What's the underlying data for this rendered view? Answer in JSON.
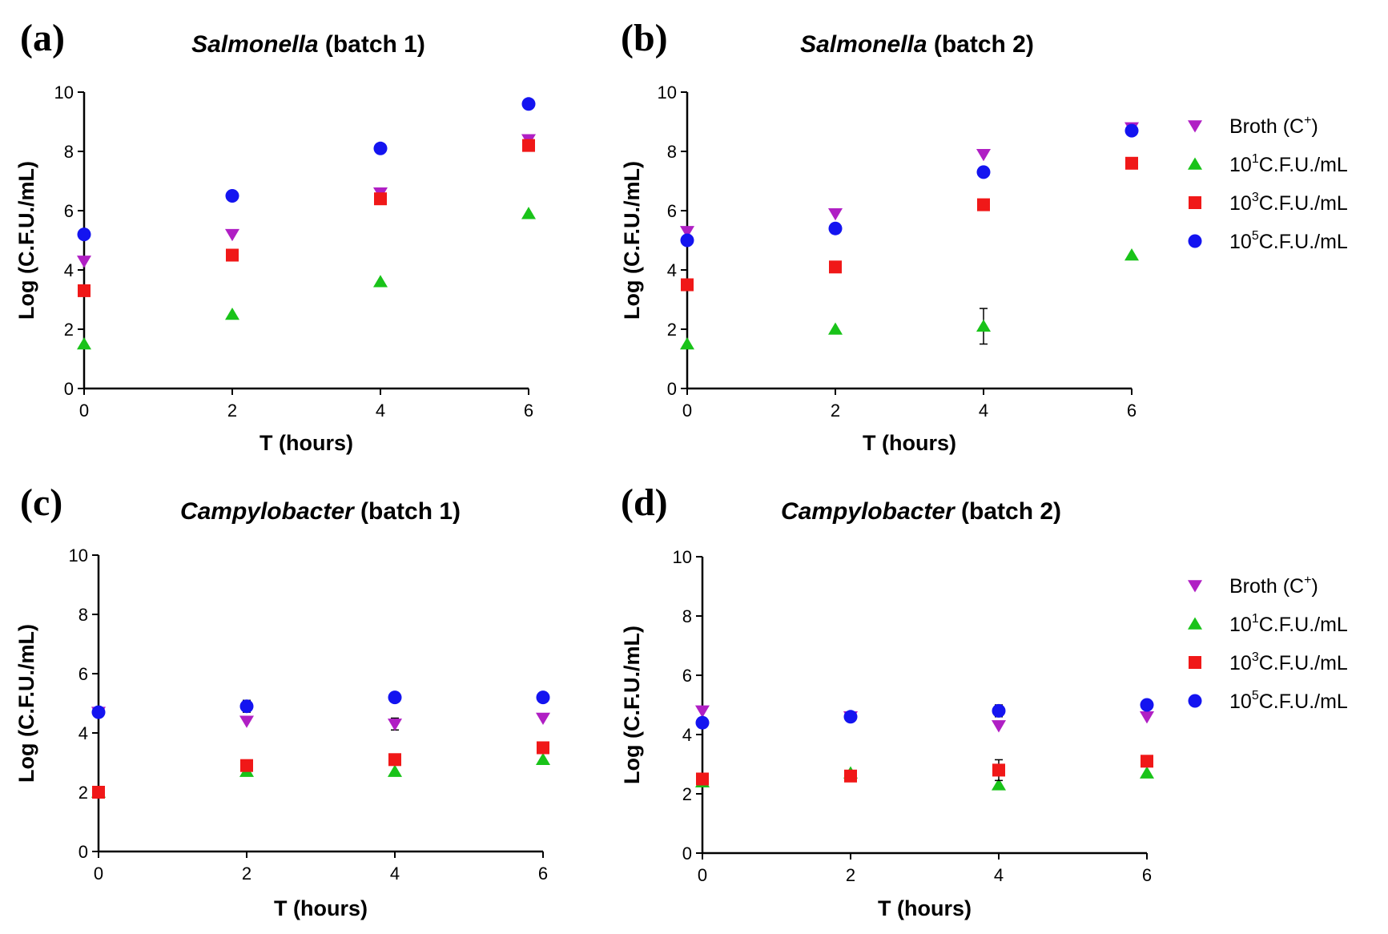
{
  "colors": {
    "broth": "#b01fc4",
    "c101": "#19c319",
    "c103": "#f01818",
    "c105": "#1414f0",
    "axis": "#000000"
  },
  "series_meta": [
    {
      "key": "broth",
      "icon": "triangle-down-icon",
      "label_prefix": "Broth (C",
      "label_sup": "+",
      "label_suffix": ")"
    },
    {
      "key": "c101",
      "icon": "triangle-up-icon",
      "label_prefix": "10",
      "label_sup": "1",
      "label_suffix": "C.F.U./mL"
    },
    {
      "key": "c103",
      "icon": "square-icon",
      "label_prefix": "10",
      "label_sup": "3",
      "label_suffix": "C.F.U./mL"
    },
    {
      "key": "c105",
      "icon": "circle-icon",
      "label_prefix": "10",
      "label_sup": "5",
      "label_suffix": "C.F.U./mL"
    }
  ],
  "chart_data": [
    {
      "type": "scatter",
      "panel_label": "(a)",
      "title_italic": "Salmonella",
      "title_rest": " (batch 1)",
      "xlabel": "T (hours)",
      "ylabel": "Log (C.F.U./mL)",
      "xlim": [
        0,
        6
      ],
      "ylim": [
        0,
        10
      ],
      "xticks": [
        0,
        2,
        4,
        6
      ],
      "yticks": [
        0,
        2,
        4,
        6,
        8,
        10
      ],
      "legend": false,
      "x": [
        0,
        2,
        4,
        6
      ],
      "series": [
        {
          "name": "Broth (C+)",
          "key": "broth",
          "values": [
            4.3,
            5.2,
            6.6,
            8.4
          ],
          "errors": [
            0,
            0,
            0,
            0
          ]
        },
        {
          "name": "10^1 C.F.U./mL",
          "key": "c101",
          "values": [
            1.5,
            2.5,
            3.6,
            5.9
          ],
          "errors": [
            0,
            0,
            0,
            0
          ]
        },
        {
          "name": "10^3 C.F.U./mL",
          "key": "c103",
          "values": [
            3.3,
            4.5,
            6.4,
            8.2
          ],
          "errors": [
            0,
            0.15,
            0,
            0
          ]
        },
        {
          "name": "10^5 C.F.U./mL",
          "key": "c105",
          "values": [
            5.2,
            6.5,
            8.1,
            9.6
          ],
          "errors": [
            0,
            0,
            0,
            0
          ]
        }
      ]
    },
    {
      "type": "scatter",
      "panel_label": "(b)",
      "title_italic": "Salmonella",
      "title_rest": " (batch 2)",
      "xlabel": "T (hours)",
      "ylabel": "Log (C.F.U./mL)",
      "xlim": [
        0,
        6
      ],
      "ylim": [
        0,
        10
      ],
      "xticks": [
        0,
        2,
        4,
        6
      ],
      "yticks": [
        0,
        2,
        4,
        6,
        8,
        10
      ],
      "legend": true,
      "x": [
        0,
        2,
        4,
        6
      ],
      "series": [
        {
          "name": "Broth (C+)",
          "key": "broth",
          "values": [
            5.3,
            5.9,
            7.9,
            8.8
          ],
          "errors": [
            0,
            0,
            0,
            0
          ]
        },
        {
          "name": "10^1 C.F.U./mL",
          "key": "c101",
          "values": [
            1.5,
            2.0,
            2.1,
            4.5
          ],
          "errors": [
            0,
            0,
            0.6,
            0
          ]
        },
        {
          "name": "10^3 C.F.U./mL",
          "key": "c103",
          "values": [
            3.5,
            4.1,
            6.2,
            7.6
          ],
          "errors": [
            0,
            0,
            0,
            0
          ]
        },
        {
          "name": "10^5 C.F.U./mL",
          "key": "c105",
          "values": [
            5.0,
            5.4,
            7.3,
            8.7
          ],
          "errors": [
            0,
            0,
            0,
            0
          ]
        }
      ]
    },
    {
      "type": "scatter",
      "panel_label": "(c)",
      "title_italic": "Campylobacter",
      "title_rest": " (batch 1)",
      "xlabel": "T (hours)",
      "ylabel": "Log (C.F.U./mL)",
      "xlim": [
        0,
        6
      ],
      "ylim": [
        0,
        10
      ],
      "xticks": [
        0,
        2,
        4,
        6
      ],
      "yticks": [
        0,
        2,
        4,
        6,
        8,
        10
      ],
      "legend": false,
      "x": [
        0,
        2,
        4,
        6
      ],
      "series": [
        {
          "name": "Broth (C+)",
          "key": "broth",
          "values": [
            4.7,
            4.4,
            4.3,
            4.5
          ],
          "errors": [
            0,
            0,
            0.2,
            0
          ]
        },
        {
          "name": "10^1 C.F.U./mL",
          "key": "c101",
          "values": [
            2.0,
            2.7,
            2.7,
            3.1
          ],
          "errors": [
            0,
            0,
            0,
            0
          ]
        },
        {
          "name": "10^3 C.F.U./mL",
          "key": "c103",
          "values": [
            2.0,
            2.9,
            3.1,
            3.5
          ],
          "errors": [
            0,
            0,
            0,
            0
          ]
        },
        {
          "name": "10^5 C.F.U./mL",
          "key": "c105",
          "values": [
            4.7,
            4.9,
            5.2,
            5.2
          ],
          "errors": [
            0,
            0.2,
            0,
            0
          ]
        }
      ]
    },
    {
      "type": "scatter",
      "panel_label": "(d)",
      "title_italic": "Campylobacter",
      "title_rest": " (batch 2)",
      "xlabel": "T (hours)",
      "ylabel": "Log (C.F.U./mL)",
      "xlim": [
        0,
        6
      ],
      "ylim": [
        0,
        10
      ],
      "xticks": [
        0,
        2,
        4,
        6
      ],
      "yticks": [
        0,
        2,
        4,
        6,
        8,
        10
      ],
      "legend": true,
      "x": [
        0,
        2,
        4,
        6
      ],
      "series": [
        {
          "name": "Broth (C+)",
          "key": "broth",
          "values": [
            4.8,
            4.6,
            4.3,
            4.6
          ],
          "errors": [
            0,
            0,
            0,
            0
          ]
        },
        {
          "name": "10^1 C.F.U./mL",
          "key": "c101",
          "values": [
            2.4,
            2.7,
            2.3,
            2.7
          ],
          "errors": [
            0,
            0,
            0,
            0
          ]
        },
        {
          "name": "10^3 C.F.U./mL",
          "key": "c103",
          "values": [
            2.5,
            2.6,
            2.8,
            3.1
          ],
          "errors": [
            0,
            0,
            0.35,
            0
          ]
        },
        {
          "name": "10^5 C.F.U./mL",
          "key": "c105",
          "values": [
            4.4,
            4.6,
            4.8,
            5.0
          ],
          "errors": [
            0,
            0,
            0.2,
            0.15
          ]
        }
      ]
    }
  ]
}
